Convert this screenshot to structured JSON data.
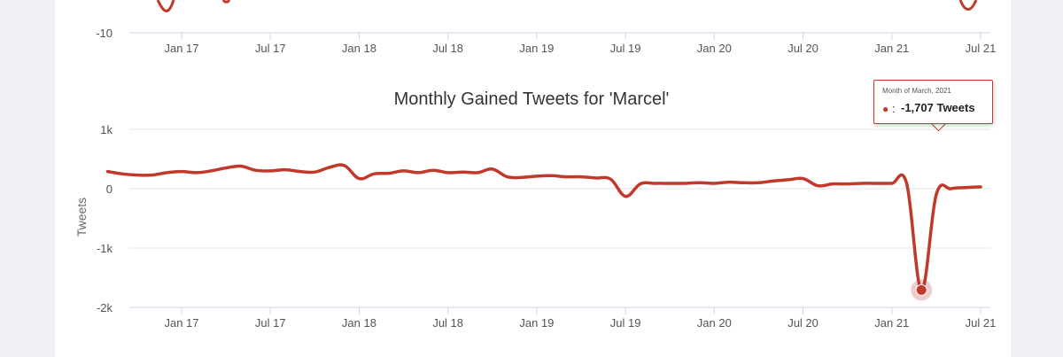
{
  "colors": {
    "series": "#c0392b",
    "grid": "#e6e6e6",
    "axis": "#ccd6eb",
    "background": "#eef0f3",
    "card": "#ffffff"
  },
  "top_chart": {
    "ytick_labels": [
      "-10"
    ],
    "xtick_labels": [
      "Jan 17",
      "Jul 17",
      "Jan 18",
      "Jul 18",
      "Jan 19",
      "Jul 19",
      "Jan 20",
      "Jul 20",
      "Jan 21",
      "Jul 21"
    ]
  },
  "chart_data": {
    "type": "line",
    "title": "Monthly Gained Tweets for 'Marcel'",
    "xlabel": "",
    "ylabel": "Tweets",
    "ylim": [
      -2000,
      1000
    ],
    "ytick_labels": [
      "1k",
      "0",
      "-1k",
      "-2k"
    ],
    "xtick_labels": [
      "Jan 17",
      "Jul 17",
      "Jan 18",
      "Jul 18",
      "Jan 19",
      "Jul 19",
      "Jan 20",
      "Jul 20",
      "Jan 21",
      "Jul 21"
    ],
    "grid": true,
    "legend": "none",
    "series": [
      {
        "x": [
          "2016-08",
          "2016-09",
          "2016-10",
          "2016-11",
          "2016-12",
          "2017-01",
          "2017-02",
          "2017-03",
          "2017-04",
          "2017-05",
          "2017-06",
          "2017-07",
          "2017-08",
          "2017-09",
          "2017-10",
          "2017-11",
          "2017-12",
          "2018-01",
          "2018-02",
          "2018-03",
          "2018-04",
          "2018-05",
          "2018-06",
          "2018-07",
          "2018-08",
          "2018-09",
          "2018-10",
          "2018-11",
          "2018-12",
          "2019-01",
          "2019-02",
          "2019-03",
          "2019-04",
          "2019-05",
          "2019-06",
          "2019-07",
          "2019-08",
          "2019-09",
          "2019-10",
          "2019-11",
          "2019-12",
          "2020-01",
          "2020-02",
          "2020-03",
          "2020-04",
          "2020-05",
          "2020-06",
          "2020-07",
          "2020-08",
          "2020-09",
          "2020-10",
          "2020-11",
          "2020-12",
          "2021-01",
          "2021-02",
          "2021-03",
          "2021-04",
          "2021-05",
          "2021-06",
          "2021-07"
        ],
        "values": [
          290,
          250,
          230,
          230,
          270,
          290,
          270,
          300,
          350,
          380,
          310,
          300,
          320,
          290,
          280,
          360,
          390,
          170,
          250,
          260,
          300,
          270,
          310,
          270,
          280,
          270,
          330,
          200,
          190,
          210,
          220,
          200,
          200,
          180,
          160,
          -130,
          80,
          90,
          90,
          90,
          100,
          90,
          110,
          100,
          100,
          130,
          150,
          170,
          50,
          80,
          80,
          90,
          90,
          90,
          90,
          -1707,
          -100,
          0,
          20,
          30
        ]
      }
    ],
    "highlight_point": {
      "x": "2021-03",
      "value": -1707
    }
  },
  "tooltip": {
    "header": "Month of March, 2021",
    "dot": "●",
    "colon": ":",
    "value_text": "-1,707 Tweets"
  }
}
